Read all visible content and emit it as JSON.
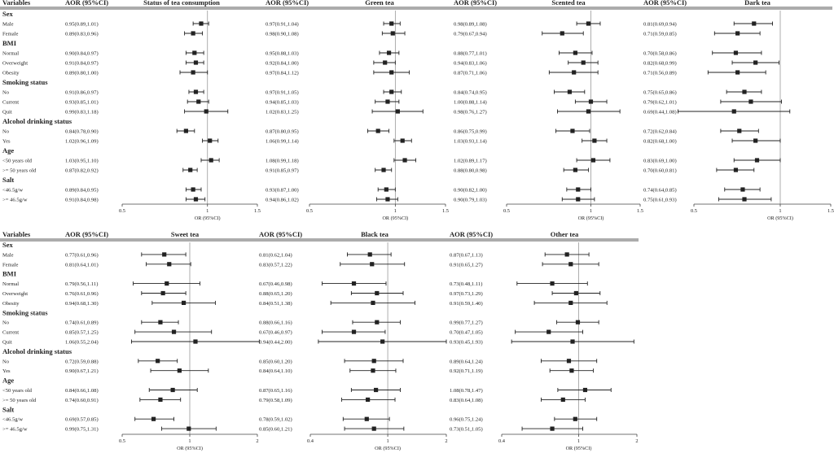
{
  "chart_data": {
    "type": "forest",
    "column_headers": {
      "variables": "Variables",
      "aor": "AOR (95%CI)"
    },
    "axis_label": "OR (95%CI)",
    "rows": [
      {
        "kind": "group",
        "label": "Sex"
      },
      {
        "kind": "item",
        "label": "Male"
      },
      {
        "kind": "item",
        "label": "Female"
      },
      {
        "kind": "group",
        "label": "BMI"
      },
      {
        "kind": "item",
        "label": "Normal"
      },
      {
        "kind": "item",
        "label": "Overweight"
      },
      {
        "kind": "item",
        "label": "Obesity"
      },
      {
        "kind": "group",
        "label": "Smoking status"
      },
      {
        "kind": "item",
        "label": "No"
      },
      {
        "kind": "item",
        "label": "Current"
      },
      {
        "kind": "item",
        "label": "Quit"
      },
      {
        "kind": "group",
        "label": "Alcohol drinking status"
      },
      {
        "kind": "item",
        "label": "No"
      },
      {
        "kind": "item",
        "label": "Yes"
      },
      {
        "kind": "group",
        "label": "Age"
      },
      {
        "kind": "item",
        "label": "<50 years old"
      },
      {
        "kind": "item",
        "label": ">= 50 years old"
      },
      {
        "kind": "group",
        "label": "Salt"
      },
      {
        "kind": "item",
        "label": "<46.5g/w"
      },
      {
        "kind": "item",
        "label": ">= 46.5g/w"
      }
    ],
    "panels": [
      {
        "title": "Status of tea consumption",
        "xlim": [
          0.5,
          1.5
        ],
        "ticks": [
          "0.5",
          "1",
          "1.5"
        ],
        "items": [
          {
            "text": "0.95(0.89,1.01)",
            "or": 0.95,
            "lo": 0.89,
            "hi": 1.01
          },
          {
            "text": "0.89(0.83,0.96)",
            "or": 0.89,
            "lo": 0.83,
            "hi": 0.96
          },
          {
            "text": "0.90(0.84,0.97)",
            "or": 0.9,
            "lo": 0.84,
            "hi": 0.97
          },
          {
            "text": "0.91(0.84,0.97)",
            "or": 0.91,
            "lo": 0.84,
            "hi": 0.97
          },
          {
            "text": "0.89(0.80,1.00)",
            "or": 0.89,
            "lo": 0.8,
            "hi": 1.0
          },
          {
            "text": "0.91(0.86,0.97)",
            "or": 0.91,
            "lo": 0.86,
            "hi": 0.97
          },
          {
            "text": "0.93(0.85,1.01)",
            "or": 0.93,
            "lo": 0.85,
            "hi": 1.01
          },
          {
            "text": "0.99(0.83,1.18)",
            "or": 0.99,
            "lo": 0.83,
            "hi": 1.18
          },
          {
            "text": "0.84(0.78,0.90)",
            "or": 0.84,
            "lo": 0.78,
            "hi": 0.9
          },
          {
            "text": "1.02(0.96,1.09)",
            "or": 1.02,
            "lo": 0.96,
            "hi": 1.09
          },
          {
            "text": "1.03(0.95,1.10)",
            "or": 1.03,
            "lo": 0.95,
            "hi": 1.1
          },
          {
            "text": "0.87(0.82,0.92)",
            "or": 0.87,
            "lo": 0.82,
            "hi": 0.92
          },
          {
            "text": "0.89(0.84,0.95)",
            "or": 0.89,
            "lo": 0.84,
            "hi": 0.95
          },
          {
            "text": "0.91(0.84,0.98)",
            "or": 0.91,
            "lo": 0.84,
            "hi": 0.98
          }
        ]
      },
      {
        "title": "Green tea",
        "xlim": [
          0.5,
          1.5
        ],
        "ticks": [
          "0.5",
          "1",
          "1.5"
        ],
        "items": [
          {
            "text": "0.97(0.91,1.04)",
            "or": 0.97,
            "lo": 0.91,
            "hi": 1.04
          },
          {
            "text": "0.98(0.90,1.08)",
            "or": 0.98,
            "lo": 0.9,
            "hi": 1.08
          },
          {
            "text": "0.95(0.88,1.03)",
            "or": 0.95,
            "lo": 0.88,
            "hi": 1.03
          },
          {
            "text": "0.92(0.84,1.00)",
            "or": 0.92,
            "lo": 0.84,
            "hi": 1.0
          },
          {
            "text": "0.97(0.84,1.12)",
            "or": 0.97,
            "lo": 0.84,
            "hi": 1.12
          },
          {
            "text": "0.97(0.91,1.05)",
            "or": 0.97,
            "lo": 0.91,
            "hi": 1.05
          },
          {
            "text": "0.94(0.85,1.03)",
            "or": 0.94,
            "lo": 0.85,
            "hi": 1.03
          },
          {
            "text": "1.02(0.83,1.25)",
            "or": 1.02,
            "lo": 0.83,
            "hi": 1.25
          },
          {
            "text": "0.87(0.80,0.95)",
            "or": 0.87,
            "lo": 0.8,
            "hi": 0.95
          },
          {
            "text": "1.06(0.99,1.14)",
            "or": 1.06,
            "lo": 0.99,
            "hi": 1.14
          },
          {
            "text": "1.08(0.99,1.18)",
            "or": 1.08,
            "lo": 0.99,
            "hi": 1.18
          },
          {
            "text": "0.91(0.85,0.97)",
            "or": 0.91,
            "lo": 0.85,
            "hi": 0.97
          },
          {
            "text": "0.93(0.87,1.00)",
            "or": 0.93,
            "lo": 0.87,
            "hi": 1.0
          },
          {
            "text": "0.94(0.86,1.02)",
            "or": 0.94,
            "lo": 0.86,
            "hi": 1.02
          }
        ]
      },
      {
        "title": "Scented tea",
        "xlim": [
          0.5,
          1.5
        ],
        "ticks": [
          "0.5",
          "1",
          "1.5"
        ],
        "items": [
          {
            "text": "0.98(0.89,1.08)",
            "or": 0.98,
            "lo": 0.89,
            "hi": 1.08
          },
          {
            "text": "0.79(0.67,0.94)",
            "or": 0.79,
            "lo": 0.67,
            "hi": 0.94
          },
          {
            "text": "0.88(0.77,1.01)",
            "or": 0.88,
            "lo": 0.77,
            "hi": 1.01
          },
          {
            "text": "0.94(0.83,1.06)",
            "or": 0.94,
            "lo": 0.83,
            "hi": 1.06
          },
          {
            "text": "0.87(0.71,1.06)",
            "or": 0.87,
            "lo": 0.71,
            "hi": 1.06
          },
          {
            "text": "0.84(0.74,0.95)",
            "or": 0.84,
            "lo": 0.74,
            "hi": 0.95
          },
          {
            "text": "1.00(0.88,1.14)",
            "or": 1.0,
            "lo": 0.88,
            "hi": 1.14
          },
          {
            "text": "0.98(0.76,1.27)",
            "or": 0.98,
            "lo": 0.76,
            "hi": 1.27
          },
          {
            "text": "0.86(0.75,0.99)",
            "or": 0.86,
            "lo": 0.75,
            "hi": 0.99
          },
          {
            "text": "1.03(0.93,1.14)",
            "or": 1.03,
            "lo": 0.93,
            "hi": 1.14
          },
          {
            "text": "1.02(0.89,1.17)",
            "or": 1.02,
            "lo": 0.89,
            "hi": 1.17
          },
          {
            "text": "0.88(0.80,0.98)",
            "or": 0.88,
            "lo": 0.8,
            "hi": 0.98
          },
          {
            "text": "0.90(0.82,1.00)",
            "or": 0.9,
            "lo": 0.82,
            "hi": 1.0
          },
          {
            "text": "0.90(0.79,1.03)",
            "or": 0.9,
            "lo": 0.79,
            "hi": 1.03
          }
        ]
      },
      {
        "title": "Dark tea",
        "xlim": [
          0.5,
          1.5
        ],
        "ticks": [
          "0.5",
          "1",
          "1.5"
        ],
        "items": [
          {
            "text": "0.81(0.69,0.94)",
            "or": 0.81,
            "lo": 0.69,
            "hi": 0.94
          },
          {
            "text": "0.71(0.59,0.85)",
            "or": 0.71,
            "lo": 0.59,
            "hi": 0.85
          },
          {
            "text": "0.70(0.58,0.86)",
            "or": 0.7,
            "lo": 0.58,
            "hi": 0.86
          },
          {
            "text": "0.82(0.68,0.99)",
            "or": 0.82,
            "lo": 0.68,
            "hi": 0.99
          },
          {
            "text": "0.71(0.56,0.89)",
            "or": 0.71,
            "lo": 0.56,
            "hi": 0.89
          },
          {
            "text": "0.75(0.65,0.86)",
            "or": 0.75,
            "lo": 0.65,
            "hi": 0.86
          },
          {
            "text": "0.79(0.62,1.01)",
            "or": 0.79,
            "lo": 0.62,
            "hi": 1.01
          },
          {
            "text": "0.69(0.44,1.08)",
            "or": 0.69,
            "lo": 0.44,
            "hi": 1.08
          },
          {
            "text": "0.72(0.62,0.84)",
            "or": 0.72,
            "lo": 0.62,
            "hi": 0.84
          },
          {
            "text": "0.82(0.68,1.00)",
            "or": 0.82,
            "lo": 0.68,
            "hi": 1.0
          },
          {
            "text": "0.83(0.69,1.00)",
            "or": 0.83,
            "lo": 0.69,
            "hi": 1.0
          },
          {
            "text": "0.70(0.60,0.81)",
            "or": 0.7,
            "lo": 0.6,
            "hi": 0.81
          },
          {
            "text": "0.74(0.64,0.85)",
            "or": 0.74,
            "lo": 0.64,
            "hi": 0.85
          },
          {
            "text": "0.75(0.61,0.93)",
            "or": 0.75,
            "lo": 0.61,
            "hi": 0.93
          }
        ]
      },
      {
        "title": "Sweet tea",
        "xlim": [
          0.5,
          2
        ],
        "ticks": [
          "0.5",
          "1",
          "2"
        ],
        "items": [
          {
            "text": "0.77(0.61,0.96)",
            "or": 0.77,
            "lo": 0.61,
            "hi": 0.96
          },
          {
            "text": "0.81(0.64,1.01)",
            "or": 0.81,
            "lo": 0.64,
            "hi": 1.01
          },
          {
            "text": "0.79(0.56,1.11)",
            "or": 0.79,
            "lo": 0.56,
            "hi": 1.11
          },
          {
            "text": "0.76(0.61,0.96)",
            "or": 0.76,
            "lo": 0.61,
            "hi": 0.96
          },
          {
            "text": "0.94(0.68,1.30)",
            "or": 0.94,
            "lo": 0.68,
            "hi": 1.3
          },
          {
            "text": "0.74(0.61,0.89)",
            "or": 0.74,
            "lo": 0.61,
            "hi": 0.89
          },
          {
            "text": "0.85(0.57,1.25)",
            "or": 0.85,
            "lo": 0.57,
            "hi": 1.25
          },
          {
            "text": "1.06(0.55,2.04)",
            "or": 1.06,
            "lo": 0.55,
            "hi": 2.04
          },
          {
            "text": "0.72(0.59,0.88)",
            "or": 0.72,
            "lo": 0.59,
            "hi": 0.88
          },
          {
            "text": "0.90(0.67,1.21)",
            "or": 0.9,
            "lo": 0.67,
            "hi": 1.21
          },
          {
            "text": "0.84(0.66,1.08)",
            "or": 0.84,
            "lo": 0.66,
            "hi": 1.08
          },
          {
            "text": "0.74(0.60,0.91)",
            "or": 0.74,
            "lo": 0.6,
            "hi": 0.91
          },
          {
            "text": "0.69(0.57,0.85)",
            "or": 0.69,
            "lo": 0.57,
            "hi": 0.85
          },
          {
            "text": "0.99(0.75,1.31)",
            "or": 0.99,
            "lo": 0.75,
            "hi": 1.31
          }
        ]
      },
      {
        "title": "Black tea",
        "xlim": [
          0.4,
          2
        ],
        "ticks": [
          "0.4",
          "1",
          "2"
        ],
        "items": [
          {
            "text": "0.81(0.62,1.04)",
            "or": 0.81,
            "lo": 0.62,
            "hi": 1.04
          },
          {
            "text": "0.83(0.57,1.22)",
            "or": 0.83,
            "lo": 0.57,
            "hi": 1.22
          },
          {
            "text": "0.67(0.46,0.98)",
            "or": 0.67,
            "lo": 0.46,
            "hi": 0.98
          },
          {
            "text": "0.88(0.65,1.20)",
            "or": 0.88,
            "lo": 0.65,
            "hi": 1.2
          },
          {
            "text": "0.84(0.51,1.38)",
            "or": 0.84,
            "lo": 0.51,
            "hi": 1.38
          },
          {
            "text": "0.88(0.66,1.16)",
            "or": 0.88,
            "lo": 0.66,
            "hi": 1.16
          },
          {
            "text": "0.67(0.46,0.97)",
            "or": 0.67,
            "lo": 0.46,
            "hi": 0.97
          },
          {
            "text": "0.94(0.44,2.00)",
            "or": 0.94,
            "lo": 0.44,
            "hi": 2.0
          },
          {
            "text": "0.85(0.60,1.20)",
            "or": 0.85,
            "lo": 0.6,
            "hi": 1.2
          },
          {
            "text": "0.84(0.64,1.10)",
            "or": 0.84,
            "lo": 0.64,
            "hi": 1.1
          },
          {
            "text": "0.87(0.65,1.16)",
            "or": 0.87,
            "lo": 0.65,
            "hi": 1.16
          },
          {
            "text": "0.79(0.58,1.09)",
            "or": 0.79,
            "lo": 0.58,
            "hi": 1.09
          },
          {
            "text": "0.78(0.59,1.02)",
            "or": 0.78,
            "lo": 0.59,
            "hi": 1.02
          },
          {
            "text": "0.85(0.60,1.21)",
            "or": 0.85,
            "lo": 0.6,
            "hi": 1.21
          }
        ]
      },
      {
        "title": "Other tea",
        "xlim": [
          0.4,
          2
        ],
        "ticks": [
          "0.4",
          "1",
          "2"
        ],
        "items": [
          {
            "text": "0.87(0.67,1.13)",
            "or": 0.87,
            "lo": 0.67,
            "hi": 1.13
          },
          {
            "text": "0.91(0.65,1.27)",
            "or": 0.91,
            "lo": 0.65,
            "hi": 1.27
          },
          {
            "text": "0.73(0.48,1.11)",
            "or": 0.73,
            "lo": 0.48,
            "hi": 1.11
          },
          {
            "text": "0.97(0.73,1.29)",
            "or": 0.97,
            "lo": 0.73,
            "hi": 1.29
          },
          {
            "text": "0.91(0.59,1.40)",
            "or": 0.91,
            "lo": 0.59,
            "hi": 1.4
          },
          {
            "text": "0.99(0.77,1.27)",
            "or": 0.99,
            "lo": 0.77,
            "hi": 1.27
          },
          {
            "text": "0.70(0.47,1.05)",
            "or": 0.7,
            "lo": 0.47,
            "hi": 1.05
          },
          {
            "text": "0.93(0.45,1.93)",
            "or": 0.93,
            "lo": 0.45,
            "hi": 1.93
          },
          {
            "text": "0.89(0.64,1.24)",
            "or": 0.89,
            "lo": 0.64,
            "hi": 1.24
          },
          {
            "text": "0.92(0.71,1.19)",
            "or": 0.92,
            "lo": 0.71,
            "hi": 1.19
          },
          {
            "text": "1.08(0.78,1.47)",
            "or": 1.08,
            "lo": 0.78,
            "hi": 1.47
          },
          {
            "text": "0.83(0.64,1.08)",
            "or": 0.83,
            "lo": 0.64,
            "hi": 1.08
          },
          {
            "text": "0.96(0.75,1.24)",
            "or": 0.96,
            "lo": 0.75,
            "hi": 1.24
          },
          {
            "text": "0.73(0.51,1.05)",
            "or": 0.73,
            "lo": 0.51,
            "hi": 1.05
          }
        ]
      }
    ]
  }
}
